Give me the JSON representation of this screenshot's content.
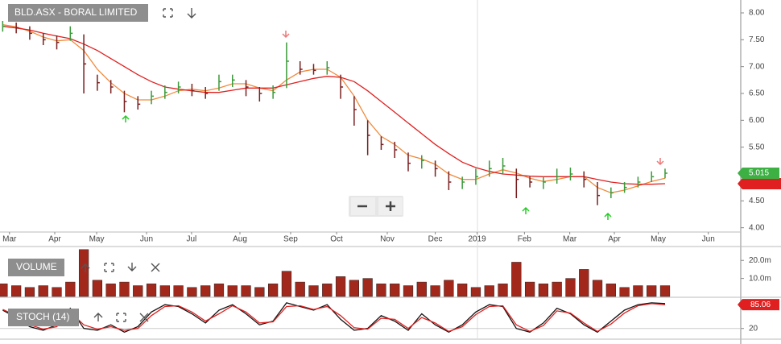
{
  "chart_data": [
    {
      "type": "ohlc",
      "title": "BLD.ASX - BORAL LIMITED",
      "x": [
        0,
        1,
        2,
        3,
        4,
        5,
        6,
        7,
        8,
        9,
        10,
        11,
        12,
        13,
        14,
        15,
        16,
        17,
        18,
        19,
        20,
        21,
        22,
        23,
        24,
        25,
        26,
        27,
        28,
        29,
        30,
        31,
        32,
        33,
        34,
        35,
        36,
        37,
        38,
        39,
        40,
        41,
        42,
        43,
        44,
        45,
        46,
        47,
        48,
        49
      ],
      "xlim": [
        -0.2,
        54.6
      ],
      "xticks": [
        {
          "value": 0.5,
          "label": "Mar"
        },
        {
          "value": 3.85,
          "label": "Apr"
        },
        {
          "value": 6.95,
          "label": "May"
        },
        {
          "value": 10.64,
          "label": "Jun"
        },
        {
          "value": 13.97,
          "label": "Jul"
        },
        {
          "value": 17.55,
          "label": "Aug"
        },
        {
          "value": 21.3,
          "label": "Sep"
        },
        {
          "value": 24.7,
          "label": "Oct"
        },
        {
          "value": 28.45,
          "label": "Nov"
        },
        {
          "value": 32.0,
          "label": "Dec"
        },
        {
          "value": 35.1,
          "label": "2019"
        },
        {
          "value": 38.6,
          "label": "Feb"
        },
        {
          "value": 41.95,
          "label": "Mar"
        },
        {
          "value": 45.25,
          "label": "Apr"
        },
        {
          "value": 48.5,
          "label": "May"
        },
        {
          "value": 52.2,
          "label": "Jun"
        }
      ],
      "ylim": [
        3.92,
        8.24
      ],
      "yticks": [
        {
          "value": 4,
          "label": "4.00"
        },
        {
          "value": 4.5,
          "label": "4.50"
        },
        {
          "value": 5,
          "label": "5.00"
        },
        {
          "value": 5.5,
          "label": "5.50"
        },
        {
          "value": 6,
          "label": "6.00"
        },
        {
          "value": 6.5,
          "label": "6.50"
        },
        {
          "value": 7,
          "label": "7.00"
        },
        {
          "value": 7.5,
          "label": "7.50"
        },
        {
          "value": 8,
          "label": "8.00"
        }
      ],
      "high": [
        7.85,
        7.82,
        7.75,
        7.62,
        7.58,
        7.75,
        7.6,
        6.85,
        6.75,
        6.55,
        6.45,
        6.55,
        6.65,
        6.72,
        6.68,
        6.62,
        6.85,
        6.85,
        6.75,
        6.62,
        6.65,
        7.45,
        7.1,
        7.05,
        7.1,
        6.85,
        6.45,
        6.0,
        5.7,
        5.6,
        5.4,
        5.35,
        5.25,
        5.05,
        4.95,
        5.1,
        5.25,
        5.3,
        5.1,
        4.95,
        4.95,
        5.1,
        5.12,
        5.05,
        4.85,
        4.75,
        4.85,
        4.95,
        5.05,
        5.1
      ],
      "low": [
        7.65,
        7.62,
        7.5,
        7.4,
        7.32,
        7.48,
        6.5,
        6.55,
        6.5,
        6.15,
        6.2,
        6.3,
        6.4,
        6.5,
        6.45,
        6.4,
        6.55,
        6.62,
        6.45,
        6.35,
        6.4,
        6.6,
        6.85,
        6.85,
        6.85,
        6.4,
        5.9,
        5.35,
        5.45,
        5.3,
        5.05,
        5.1,
        4.95,
        4.7,
        4.72,
        4.8,
        4.95,
        5.0,
        4.55,
        4.75,
        4.72,
        4.82,
        4.88,
        4.75,
        4.42,
        4.55,
        4.65,
        4.75,
        4.85,
        4.92
      ],
      "close": [
        7.75,
        7.72,
        7.62,
        7.5,
        7.45,
        7.62,
        7.05,
        6.7,
        6.62,
        6.35,
        6.3,
        6.45,
        6.52,
        6.62,
        6.55,
        6.5,
        6.72,
        6.75,
        6.62,
        6.5,
        6.52,
        7.1,
        6.95,
        6.93,
        6.98,
        6.62,
        6.2,
        5.72,
        5.55,
        5.45,
        5.2,
        5.25,
        5.1,
        4.85,
        4.85,
        4.95,
        5.1,
        5.15,
        4.9,
        4.85,
        4.85,
        4.95,
        5.0,
        4.9,
        4.6,
        4.65,
        4.75,
        4.85,
        4.95,
        5.015
      ],
      "up_color": "#3a9a3a",
      "down_color": "#7a1f1f",
      "last_color": "#3cb043",
      "lines": [
        {
          "color": "#f08a3c",
          "values": [
            7.78,
            7.74,
            7.66,
            7.55,
            7.48,
            7.5,
            7.3,
            6.95,
            6.7,
            6.5,
            6.38,
            6.38,
            6.45,
            6.55,
            6.58,
            6.55,
            6.6,
            6.68,
            6.68,
            6.6,
            6.55,
            6.75,
            6.9,
            6.95,
            6.95,
            6.8,
            6.45,
            6.0,
            5.7,
            5.55,
            5.35,
            5.28,
            5.18,
            5.0,
            4.9,
            4.9,
            5.0,
            5.08,
            5.02,
            4.92,
            4.86,
            4.9,
            4.95,
            4.95,
            4.75,
            4.65,
            4.7,
            4.78,
            4.86,
            4.92
          ]
        },
        {
          "color": "#e02020",
          "values": [
            7.75,
            7.72,
            7.68,
            7.62,
            7.57,
            7.52,
            7.42,
            7.3,
            7.15,
            7.0,
            6.85,
            6.72,
            6.62,
            6.58,
            6.55,
            6.52,
            6.52,
            6.56,
            6.6,
            6.6,
            6.6,
            6.66,
            6.72,
            6.78,
            6.82,
            6.8,
            6.72,
            6.55,
            6.35,
            6.15,
            5.95,
            5.75,
            5.55,
            5.38,
            5.22,
            5.12,
            5.05,
            5.0,
            4.98,
            4.96,
            4.95,
            4.95,
            4.95,
            4.95,
            4.9,
            4.85,
            4.82,
            4.81,
            4.81,
            4.82
          ]
        }
      ]
    },
    {
      "type": "bar",
      "title": "VOLUME",
      "x": [
        0,
        1,
        2,
        3,
        4,
        5,
        6,
        7,
        8,
        9,
        10,
        11,
        12,
        13,
        14,
        15,
        16,
        17,
        18,
        19,
        20,
        21,
        22,
        23,
        24,
        25,
        26,
        27,
        28,
        29,
        30,
        31,
        32,
        33,
        34,
        35,
        36,
        37,
        38,
        39,
        40,
        41,
        42,
        43,
        44,
        45,
        46,
        47,
        48,
        49
      ],
      "xlim": [
        -0.2,
        54.6
      ],
      "ylim": [
        0,
        26.8
      ],
      "yticks": [
        {
          "value": 10,
          "label": "10.0m"
        },
        {
          "value": 20,
          "label": "20.0m"
        }
      ],
      "values": [
        7,
        6,
        5,
        6,
        5,
        8,
        26,
        9,
        7,
        8,
        6,
        7,
        6,
        6,
        5,
        6,
        7,
        6,
        6,
        5,
        7,
        14,
        8,
        6,
        7,
        11,
        9,
        10,
        7,
        7,
        6,
        8,
        6,
        9,
        7,
        5,
        6,
        7,
        19,
        8,
        7,
        8,
        10,
        15,
        9,
        7,
        5,
        6,
        6,
        6
      ],
      "color": "#a3281c"
    },
    {
      "type": "line",
      "title": "STOCH (14)",
      "x": [
        0,
        1,
        2,
        3,
        4,
        5,
        6,
        7,
        8,
        9,
        10,
        11,
        12,
        13,
        14,
        15,
        16,
        17,
        18,
        19,
        20,
        21,
        22,
        23,
        24,
        25,
        26,
        27,
        28,
        29,
        30,
        31,
        32,
        33,
        34,
        35,
        36,
        37,
        38,
        39,
        40,
        41,
        42,
        43,
        44,
        45,
        46,
        47,
        48,
        49
      ],
      "xlim": [
        -0.2,
        54.6
      ],
      "ylim": [
        -7,
        103
      ],
      "yticks": [
        20
      ],
      "series": [
        {
          "color": "#111111",
          "values": [
            70,
            50,
            25,
            15,
            30,
            75,
            20,
            15,
            30,
            10,
            25,
            65,
            85,
            80,
            60,
            35,
            70,
            85,
            60,
            30,
            40,
            90,
            80,
            70,
            85,
            45,
            15,
            20,
            55,
            40,
            15,
            60,
            30,
            10,
            30,
            65,
            85,
            80,
            20,
            10,
            35,
            75,
            60,
            30,
            10,
            40,
            70,
            85,
            90,
            88
          ]
        },
        {
          "color": "#e02020",
          "values": [
            72,
            55,
            30,
            18,
            25,
            65,
            30,
            18,
            25,
            15,
            20,
            55,
            80,
            82,
            65,
            40,
            60,
            82,
            65,
            35,
            38,
            80,
            82,
            72,
            80,
            55,
            22,
            18,
            48,
            45,
            20,
            50,
            35,
            12,
            25,
            58,
            80,
            82,
            30,
            12,
            28,
            68,
            62,
            35,
            12,
            32,
            62,
            82,
            88,
            85.06
          ]
        }
      ]
    }
  ]
}
